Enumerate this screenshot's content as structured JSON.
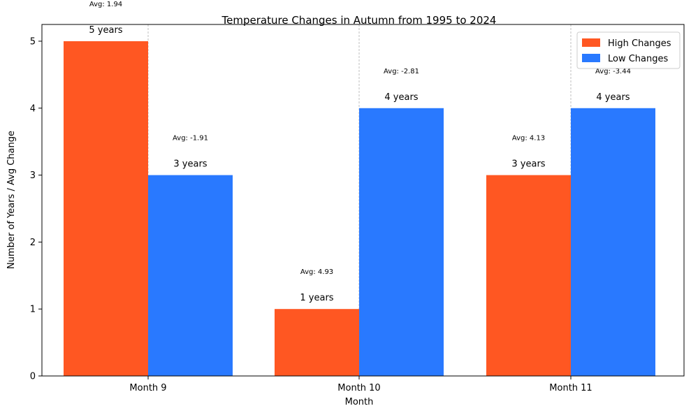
{
  "chart_data": {
    "type": "bar",
    "title": "Temperature Changes in Autumn from 1995 to 2024",
    "xlabel": "Month",
    "ylabel": "Number of Years / Avg Change",
    "categories": [
      "Month 9",
      "Month 10",
      "Month 11"
    ],
    "ylim": [
      0,
      5.25
    ],
    "yticks": [
      "0",
      "1",
      "2",
      "3",
      "4",
      "5"
    ],
    "grid": "vertical dashed lines at group centers",
    "legend_position": "top-right",
    "series": [
      {
        "name": "High Changes",
        "color": "#ff5722",
        "values": [
          5,
          1,
          3
        ],
        "labels": [
          "5 years",
          "1 years",
          "3 years"
        ],
        "avg_labels": [
          "Avg: 1.94",
          "Avg: 4.93",
          "Avg: 4.13"
        ]
      },
      {
        "name": "Low Changes",
        "color": "#2979ff",
        "values": [
          3,
          4,
          4
        ],
        "labels": [
          "3 years",
          "4 years",
          "4 years"
        ],
        "avg_labels": [
          "Avg: -1.91",
          "Avg: -2.81",
          "Avg: -3.44"
        ]
      }
    ]
  }
}
